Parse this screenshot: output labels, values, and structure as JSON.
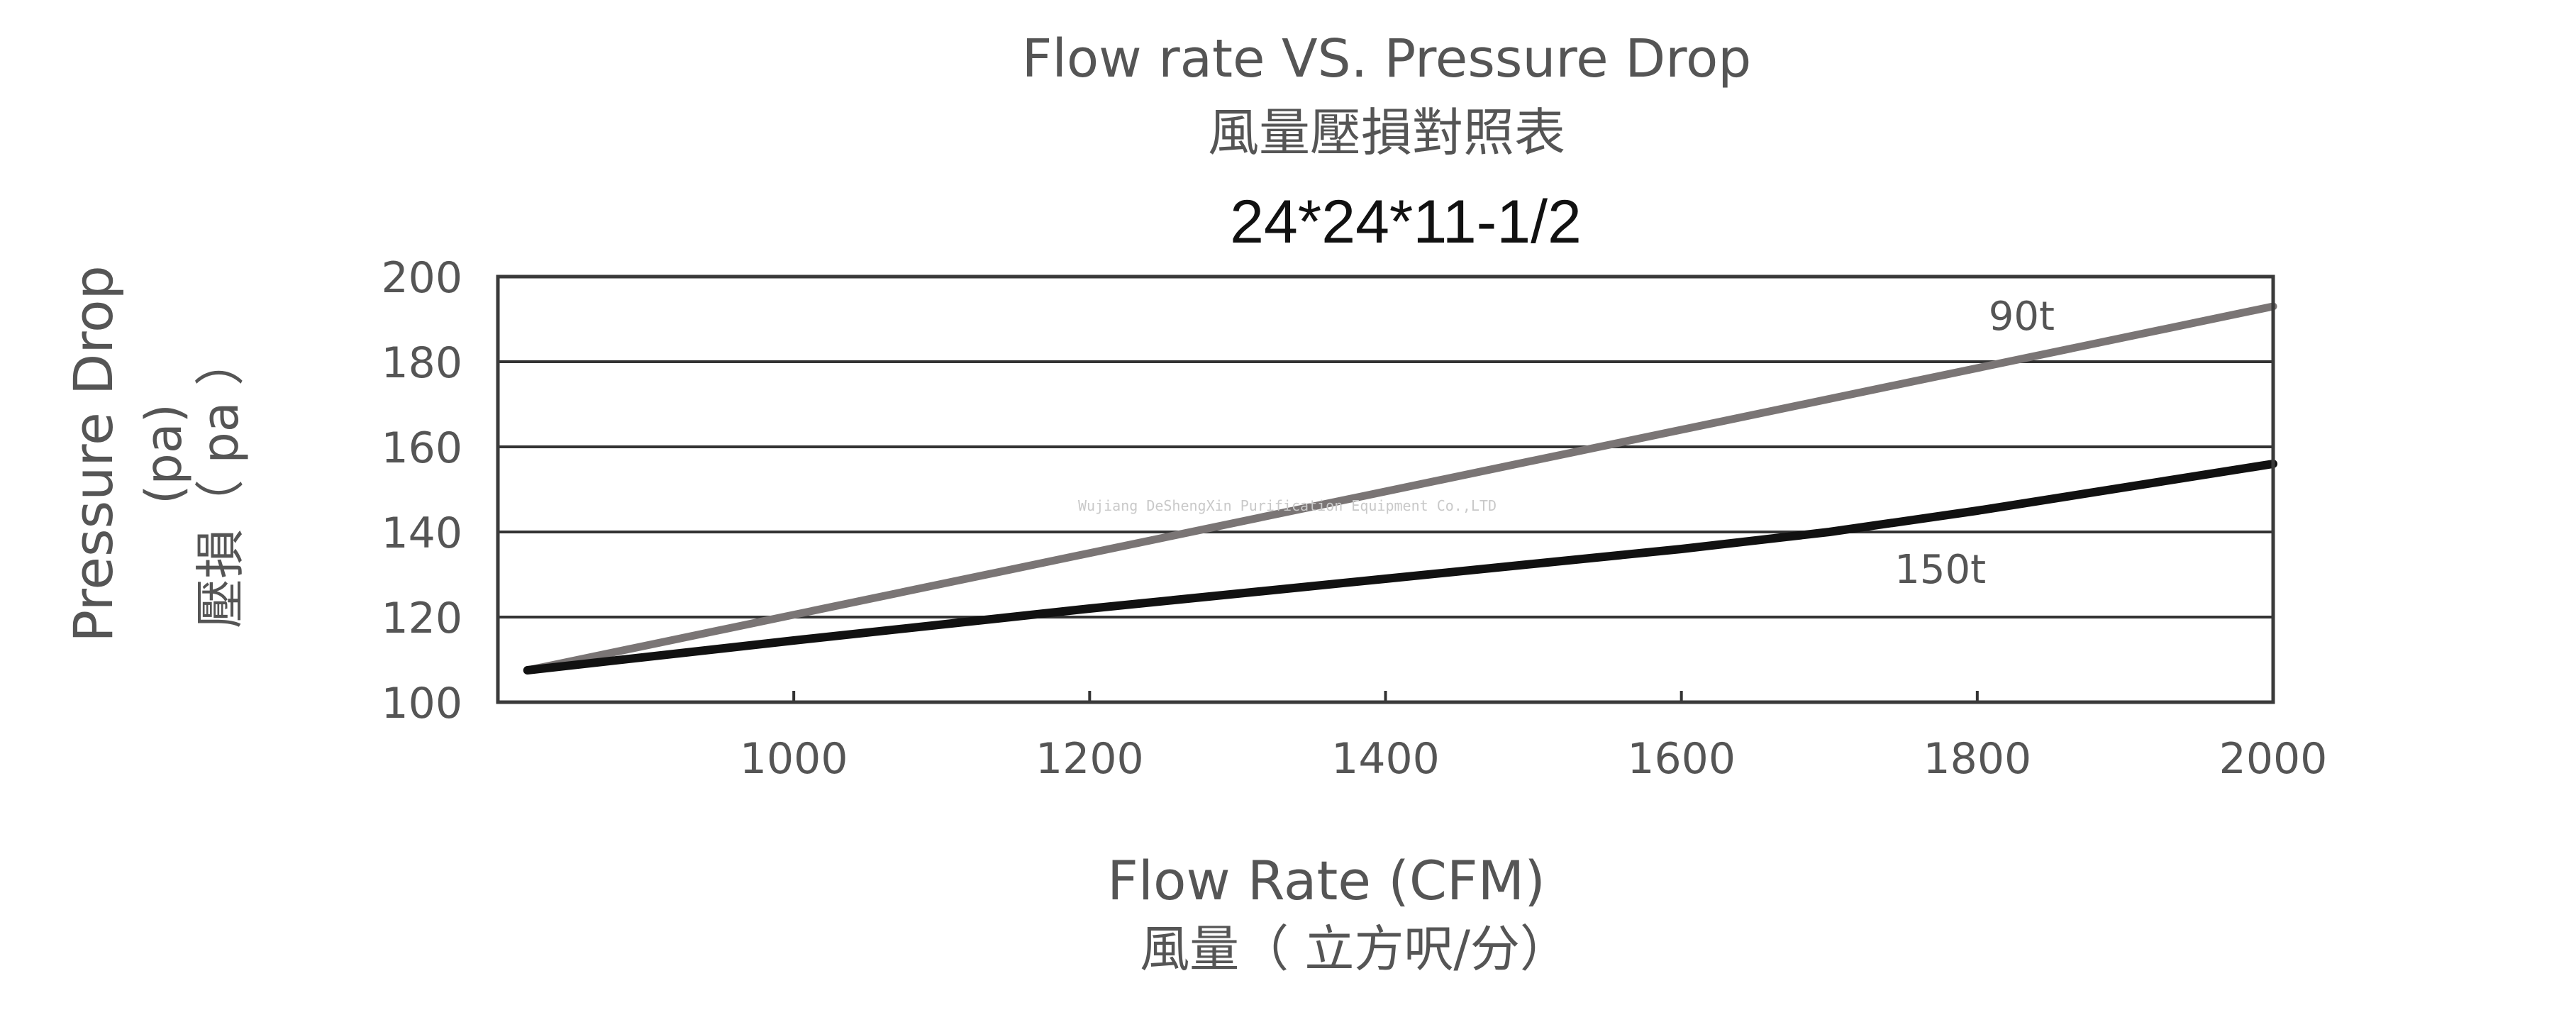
{
  "chart_data": {
    "type": "line",
    "title": "Flow rate VS. Pressure Drop",
    "title_cn": "風量壓損對照表",
    "subtitle": "24*24*11-1/2",
    "xlabel": "Flow Rate (CFM)",
    "xlabel_cn": "風量（ 立方呎/分）",
    "ylabel": "Pressure Drop",
    "ylabel_unit": "(pa)",
    "ylabel_cn": "壓損（ pa ）",
    "xlim": [
      800,
      2000
    ],
    "ylim": [
      100,
      200
    ],
    "xticks": [
      "1000",
      "1200",
      "1400",
      "1600",
      "1800",
      "2000"
    ],
    "yticks": [
      "200",
      "180",
      "160",
      "140",
      "120",
      "100"
    ],
    "grid": "horizontal",
    "watermark": "Wujiang DeShengXin Purification Equipment Co.,LTD",
    "series": [
      {
        "name": "90t",
        "color": "#7a7575",
        "x": [
          820,
          2000
        ],
        "y": [
          107.5,
          193
        ]
      },
      {
        "name": "150t",
        "color": "#111111",
        "x": [
          820,
          1000,
          1200,
          1400,
          1600,
          1700,
          1800,
          2000
        ],
        "y": [
          107.5,
          114.5,
          122,
          129,
          136,
          140,
          145,
          156
        ]
      }
    ]
  }
}
